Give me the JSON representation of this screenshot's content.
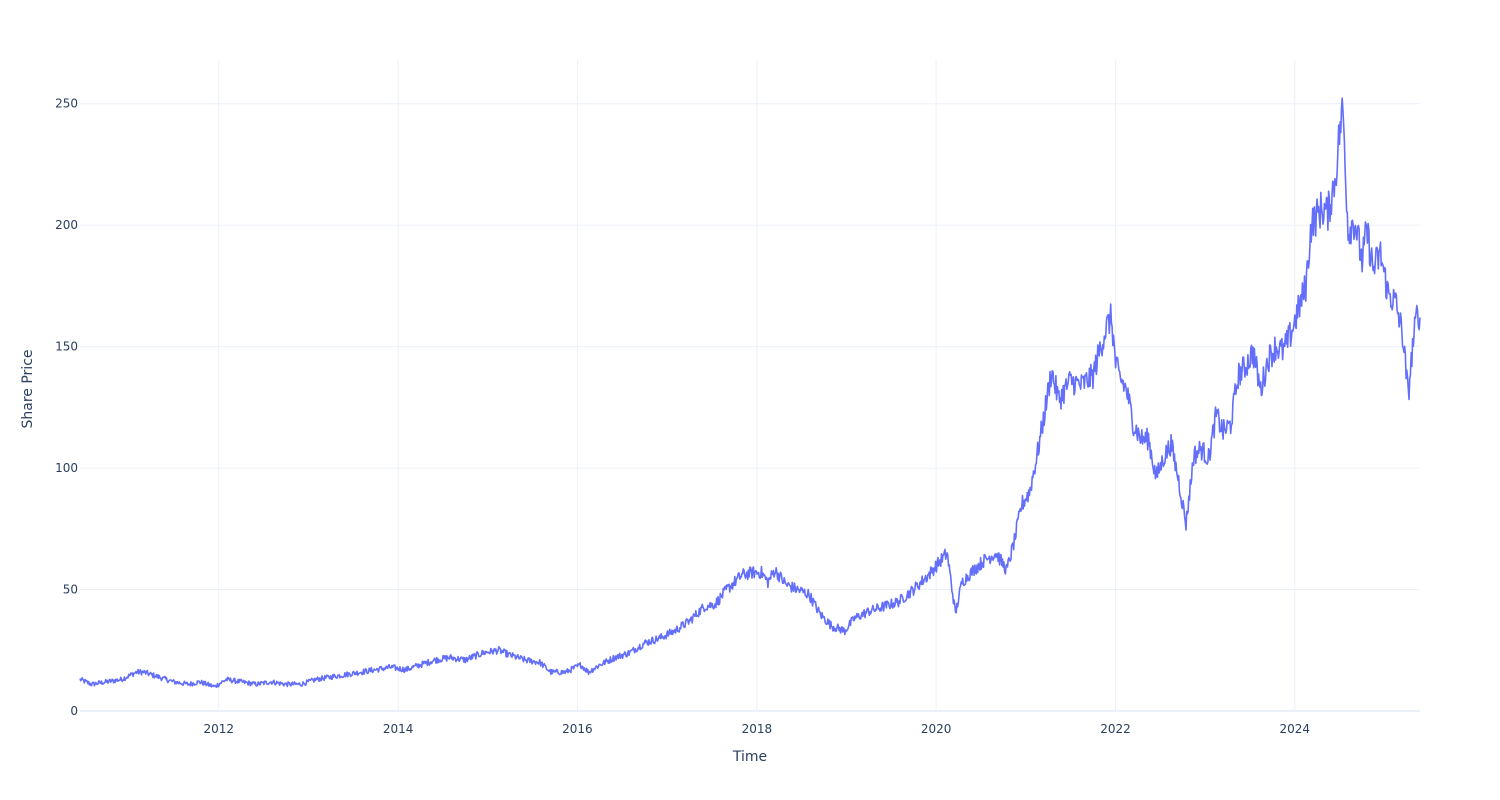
{
  "chart_data": {
    "type": "line",
    "title": "",
    "xlabel": "Time",
    "ylabel": "Share Price",
    "x_type": "date",
    "xlim": [
      "2010-06-15",
      "2025-05-25"
    ],
    "ylim": [
      0,
      268
    ],
    "x_ticks": [
      "2012",
      "2014",
      "2016",
      "2018",
      "2020",
      "2022",
      "2024"
    ],
    "y_ticks": [
      0,
      50,
      100,
      150,
      200,
      250
    ],
    "grid": true,
    "legend": "none",
    "line_color": "#636efa",
    "series": [
      {
        "x": [
          "2010-06-15",
          "2010-08-01",
          "2010-10-01",
          "2010-12-01",
          "2011-02-01",
          "2011-03-01",
          "2011-05-01",
          "2011-07-01",
          "2011-09-01",
          "2011-10-15",
          "2011-12-15",
          "2012-02-01",
          "2012-04-01",
          "2012-06-01",
          "2012-08-01",
          "2012-10-01",
          "2012-12-01",
          "2013-02-01",
          "2013-04-01",
          "2013-06-01",
          "2013-08-01",
          "2013-10-01",
          "2013-12-01",
          "2014-02-01",
          "2014-04-01",
          "2014-06-01",
          "2014-08-01",
          "2014-10-01",
          "2014-12-15",
          "2015-02-15",
          "2015-04-01",
          "2015-06-01",
          "2015-08-01",
          "2015-09-15",
          "2015-11-15",
          "2016-01-15",
          "2016-02-15",
          "2016-04-01",
          "2016-06-01",
          "2016-08-01",
          "2016-10-01",
          "2016-12-01",
          "2017-02-01",
          "2017-04-01",
          "2017-06-01",
          "2017-07-15",
          "2017-09-01",
          "2017-11-01",
          "2017-12-15",
          "2018-01-20",
          "2018-02-15",
          "2018-03-15",
          "2018-05-01",
          "2018-06-15",
          "2018-08-01",
          "2018-09-15",
          "2018-11-01",
          "2018-12-25",
          "2019-02-01",
          "2019-04-01",
          "2019-06-01",
          "2019-08-01",
          "2019-10-01",
          "2019-12-01",
          "2020-01-20",
          "2020-02-15",
          "2020-03-20",
          "2020-04-15",
          "2020-06-01",
          "2020-07-15",
          "2020-09-01",
          "2020-10-15",
          "2020-11-15",
          "2020-12-15",
          "2021-01-15",
          "2021-02-15",
          "2021-03-10",
          "2021-04-15",
          "2021-05-15",
          "2021-07-01",
          "2021-08-15",
          "2021-10-01",
          "2021-11-01",
          "2021-11-25",
          "2021-12-15",
          "2022-01-01",
          "2022-01-15",
          "2022-02-15",
          "2022-03-15",
          "2022-04-15",
          "2022-05-15",
          "2022-06-15",
          "2022-07-15",
          "2022-08-15",
          "2022-09-15",
          "2022-10-15",
          "2022-11-15",
          "2022-12-15",
          "2023-01-15",
          "2023-02-15",
          "2023-03-15",
          "2023-04-15",
          "2023-05-15",
          "2023-06-15",
          "2023-07-15",
          "2023-08-15",
          "2023-09-15",
          "2023-10-15",
          "2023-11-15",
          "2023-12-15",
          "2024-01-15",
          "2024-02-15",
          "2024-03-08",
          "2024-04-19",
          "2024-05-15",
          "2024-06-15",
          "2024-07-01",
          "2024-07-15",
          "2024-08-05",
          "2024-09-01",
          "2024-10-01",
          "2024-10-20",
          "2024-11-15",
          "2024-12-15",
          "2025-01-15",
          "2025-02-15",
          "2025-03-15",
          "2025-04-07",
          "2025-04-25",
          "2025-05-15",
          "2025-05-25"
        ],
        "y": [
          13,
          11,
          12,
          13,
          16,
          16,
          14,
          12,
          11,
          12,
          10,
          13,
          12,
          11,
          12,
          11,
          11,
          13,
          14,
          15,
          16,
          17,
          18,
          17,
          19,
          21,
          22,
          21,
          24,
          25,
          23,
          21,
          20,
          16,
          16,
          19,
          16,
          19,
          22,
          24,
          28,
          30,
          33,
          37,
          43,
          44,
          50,
          56,
          57,
          57,
          53,
          58,
          52,
          50,
          48,
          40,
          35,
          33,
          38,
          41,
          43,
          45,
          50,
          56,
          62,
          65,
          40,
          53,
          58,
          62,
          65,
          58,
          70,
          85,
          90,
          105,
          118,
          140,
          128,
          136,
          134,
          138,
          150,
          158,
          162,
          143,
          138,
          132,
          118,
          112,
          112,
          96,
          104,
          110,
          95,
          77,
          105,
          108,
          104,
          122,
          115,
          118,
          138,
          142,
          148,
          132,
          145,
          150,
          148,
          155,
          165,
          175,
          200,
          207,
          205,
          220,
          238,
          248,
          198,
          202,
          185,
          198,
          182,
          188,
          172,
          168,
          155,
          130,
          150,
          165,
          162
        ]
      }
    ]
  }
}
